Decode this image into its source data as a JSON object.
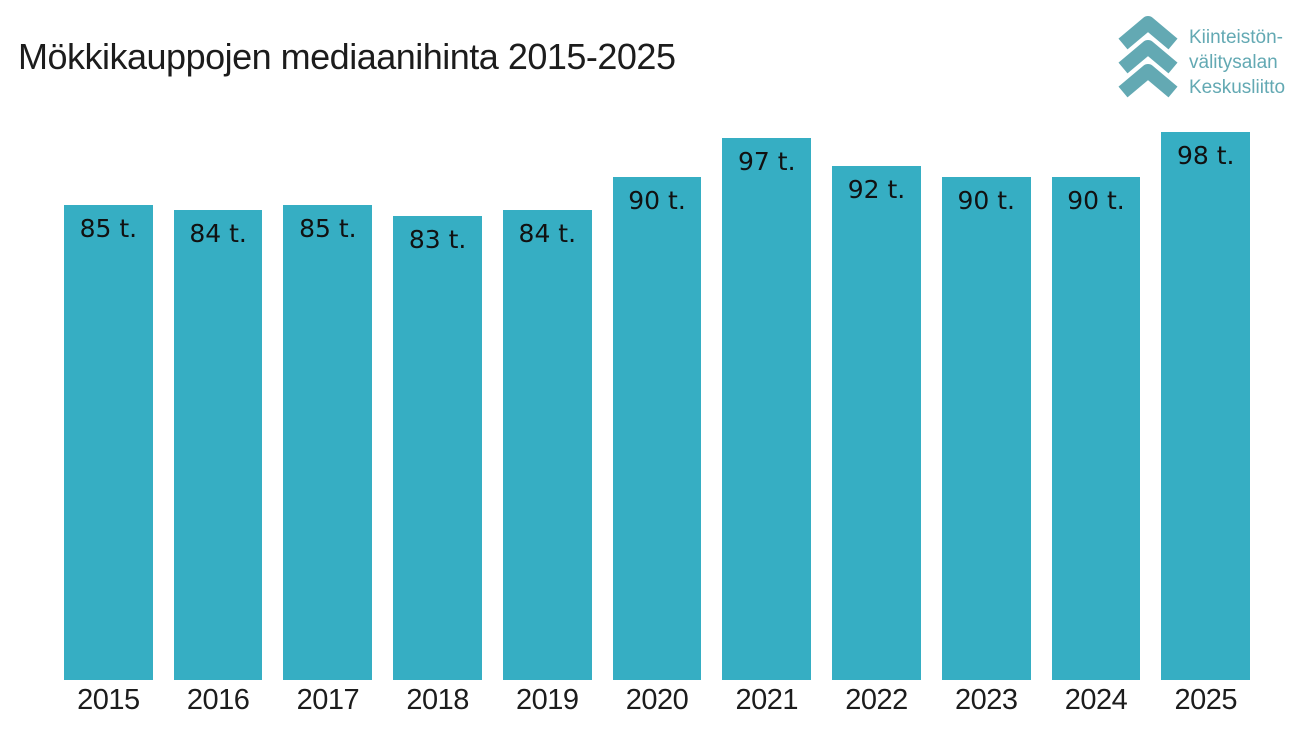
{
  "title": "Mökkikauppojen mediaanihinta 2015-2025",
  "logo": {
    "lines": [
      "Kiinteistön-",
      "välitysalan",
      "Keskusliitto"
    ],
    "icon": "triple-chevron-up-icon",
    "color": "#63a9b3"
  },
  "colors": {
    "bar": "#36aec3",
    "value_label": "#111111",
    "title_text": "#1c1c1c"
  },
  "chart_data": {
    "type": "bar",
    "title": "Mökkikauppojen mediaanihinta 2015-2025",
    "categories": [
      "2015",
      "2016",
      "2017",
      "2018",
      "2019",
      "2020",
      "2021",
      "2022",
      "2023",
      "2024",
      "2025"
    ],
    "values": [
      85,
      84,
      85,
      83,
      84,
      90,
      97,
      92,
      90,
      90,
      98
    ],
    "value_labels": [
      "85 t.",
      "84 t.",
      "85 t.",
      "83 t.",
      "84 t.",
      "90 t.",
      "97 t.",
      "92 t.",
      "90 t.",
      "90 t.",
      "98 t."
    ],
    "unit": "t.",
    "xlabel": "",
    "ylabel": "",
    "ylim": [
      0,
      98
    ],
    "grid": false,
    "legend": false,
    "value_label_position": "inside-top",
    "bar_color": "#36aec3"
  }
}
